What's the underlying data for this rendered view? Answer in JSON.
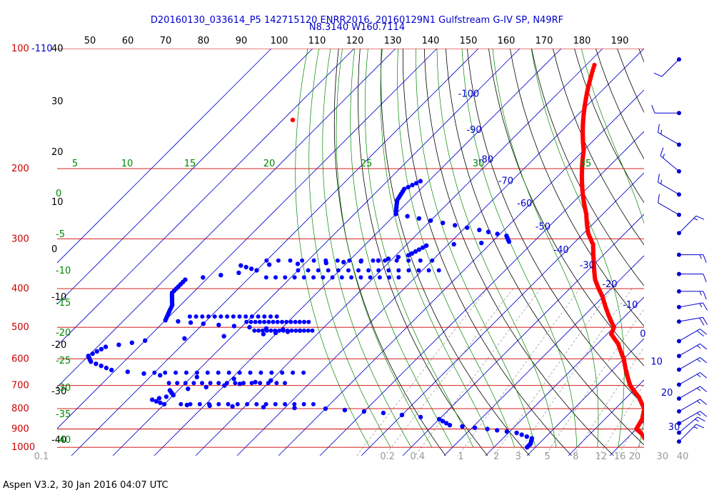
{
  "header": {
    "line1": "D20160130_033614_P5 142715120 ENRR2016, 20160129N1 Gulfstream G-IV SP, N49RF",
    "line2": "N8.3140 W160.7114"
  },
  "footer": "Aspen V3.2, 30 Jan 2016  04:07 UTC",
  "colors": {
    "isobar": "#cc0000",
    "isotherm": "#0000cc",
    "dry_adiabat": "#000000",
    "moist_adiabat": "#008800",
    "mixing_ratio": "#999999",
    "temperature": "#ff0000",
    "dewpoint": "#0000ff",
    "wind": "#0000cc"
  },
  "chart_data": {
    "type": "skew-t",
    "pressure_levels": [
      100,
      200,
      300,
      400,
      500,
      600,
      700,
      800,
      900,
      1000
    ],
    "pressure_labels": [
      "100",
      "200",
      "300",
      "400",
      "500",
      "600",
      "700",
      "800",
      "900",
      "1000"
    ],
    "top_axis_ticks": [
      "50",
      "60",
      "70",
      "80",
      "90",
      "100",
      "110",
      "120",
      "130",
      "140",
      "150",
      "160",
      "170",
      "180",
      "190"
    ],
    "left_extra_label": "-110",
    "dry_adiabat_labels": [
      "40",
      "30",
      "20",
      "10",
      "0",
      "-10",
      "-20",
      "-30",
      "-40"
    ],
    "moist_adiabat_labels": [
      "0",
      "-5",
      "-10",
      "-15",
      "-20",
      "-25",
      "-30",
      "-35",
      "-40"
    ],
    "moist_top_labels": [
      "5",
      "10",
      "15",
      "20",
      "25",
      "30",
      "35"
    ],
    "isotherm_labels": [
      {
        "t": -100,
        "p": 130
      },
      {
        "t": -90,
        "p": 160
      },
      {
        "t": -80,
        "p": 190
      },
      {
        "t": -70,
        "p": 215
      },
      {
        "t": -60,
        "p": 245
      },
      {
        "t": -50,
        "p": 280
      },
      {
        "t": -40,
        "p": 320
      },
      {
        "t": -30,
        "p": 350
      },
      {
        "t": -20,
        "p": 390
      },
      {
        "t": -10,
        "p": 440
      },
      {
        "t": 0,
        "p": 520
      },
      {
        "t": 10,
        "p": 610
      },
      {
        "t": 20,
        "p": 730
      },
      {
        "t": 30,
        "p": 890
      }
    ],
    "mixing_ratio_labels": [
      "0.1",
      "0.2",
      "0.4",
      "1",
      "2",
      "3",
      "5",
      "8",
      "12",
      "16",
      "20",
      "30",
      "40"
    ],
    "temperature": [
      {
        "p": 110,
        "t": -78
      },
      {
        "p": 180,
        "t": -60
      },
      {
        "p": 200,
        "t": -56
      },
      {
        "p": 230,
        "t": -50
      },
      {
        "p": 260,
        "t": -44
      },
      {
        "p": 290,
        "t": -39
      },
      {
        "p": 310,
        "t": -35
      },
      {
        "p": 340,
        "t": -31
      },
      {
        "p": 380,
        "t": -26
      },
      {
        "p": 420,
        "t": -20
      },
      {
        "p": 460,
        "t": -15
      },
      {
        "p": 500,
        "t": -10
      },
      {
        "p": 520,
        "t": -9
      },
      {
        "p": 550,
        "t": -5
      },
      {
        "p": 600,
        "t": 0
      },
      {
        "p": 650,
        "t": 4
      },
      {
        "p": 700,
        "t": 8
      },
      {
        "p": 750,
        "t": 13
      },
      {
        "p": 800,
        "t": 17
      },
      {
        "p": 850,
        "t": 19
      },
      {
        "p": 900,
        "t": 20
      },
      {
        "p": 920,
        "t": 22
      },
      {
        "p": 960,
        "t": 25
      },
      {
        "p": 1000,
        "t": 27
      }
    ],
    "dewpoint": [
      {
        "p": 215,
        "t": -92
      },
      {
        "p": 225,
        "t": -94
      },
      {
        "p": 240,
        "t": -93
      },
      {
        "p": 260,
        "t": -90
      },
      {
        "p": 270,
        "t": -80
      },
      {
        "p": 285,
        "t": -66
      },
      {
        "p": 295,
        "t": -58
      },
      {
        "p": 305,
        "t": -56
      },
      {
        "p": 312,
        "t": -75
      },
      {
        "p": 330,
        "t": -77
      },
      {
        "p": 340,
        "t": -83
      },
      {
        "p": 345,
        "t": -95
      },
      {
        "p": 350,
        "t": -115
      },
      {
        "p": 360,
        "t": -110
      },
      {
        "p": 380,
        "t": -125
      },
      {
        "p": 410,
        "t": -125
      },
      {
        "p": 440,
        "t": -122
      },
      {
        "p": 480,
        "t": -120
      },
      {
        "p": 490,
        "t": -110
      },
      {
        "p": 500,
        "t": -98
      },
      {
        "p": 510,
        "t": -85
      },
      {
        "p": 520,
        "t": -93
      },
      {
        "p": 540,
        "t": -120
      },
      {
        "p": 560,
        "t": -128
      },
      {
        "p": 590,
        "t": -130
      },
      {
        "p": 610,
        "t": -128
      },
      {
        "p": 640,
        "t": -121
      },
      {
        "p": 660,
        "t": -108
      },
      {
        "p": 680,
        "t": -80
      },
      {
        "p": 700,
        "t": -90
      },
      {
        "p": 720,
        "t": -102
      },
      {
        "p": 740,
        "t": -100
      },
      {
        "p": 760,
        "t": -104
      },
      {
        "p": 780,
        "t": -100
      },
      {
        "p": 790,
        "t": -83
      },
      {
        "p": 800,
        "t": -60
      },
      {
        "p": 820,
        "t": -45
      },
      {
        "p": 850,
        "t": -30
      },
      {
        "p": 880,
        "t": -26
      },
      {
        "p": 900,
        "t": -16
      },
      {
        "p": 920,
        "t": -8
      },
      {
        "p": 950,
        "t": -3
      },
      {
        "p": 980,
        "t": -2
      },
      {
        "p": 1000,
        "t": -2
      }
    ],
    "dewpoint_scatter_groups": [
      {
        "p": 340,
        "t_from": -110,
        "t_to": -70
      },
      {
        "p": 360,
        "t_from": -100,
        "t_to": -66
      },
      {
        "p": 375,
        "t_from": -106,
        "t_to": -74
      },
      {
        "p": 470,
        "t_from": -115,
        "t_to": -94
      },
      {
        "p": 485,
        "t_from": -100,
        "t_to": -85
      },
      {
        "p": 510,
        "t_from": -96,
        "t_to": -82
      },
      {
        "p": 650,
        "t_from": -110,
        "t_to": -74
      },
      {
        "p": 690,
        "t_from": -104,
        "t_to": -76
      },
      {
        "p": 780,
        "t_from": -96,
        "t_to": -64
      }
    ],
    "wind_barbs": [
      {
        "p": 110,
        "dir": 225,
        "spd": 10
      },
      {
        "p": 150,
        "dir": 270,
        "spd": 10
      },
      {
        "p": 180,
        "dir": 300,
        "spd": 15
      },
      {
        "p": 210,
        "dir": 310,
        "spd": 15
      },
      {
        "p": 240,
        "dir": 300,
        "spd": 15
      },
      {
        "p": 270,
        "dir": 300,
        "spd": 10
      },
      {
        "p": 300,
        "dir": 45,
        "spd": 15
      },
      {
        "p": 340,
        "dir": 90,
        "spd": 15
      },
      {
        "p": 380,
        "dir": 90,
        "spd": 10
      },
      {
        "p": 420,
        "dir": 90,
        "spd": 15
      },
      {
        "p": 460,
        "dir": 80,
        "spd": 15
      },
      {
        "p": 500,
        "dir": 80,
        "spd": 20
      },
      {
        "p": 560,
        "dir": 60,
        "spd": 20
      },
      {
        "p": 610,
        "dir": 60,
        "spd": 15
      },
      {
        "p": 660,
        "dir": 60,
        "spd": 15
      },
      {
        "p": 720,
        "dir": 60,
        "spd": 15
      },
      {
        "p": 780,
        "dir": 60,
        "spd": 15
      },
      {
        "p": 840,
        "dir": 60,
        "spd": 15
      },
      {
        "p": 900,
        "dir": 60,
        "spd": 15
      },
      {
        "p": 950,
        "dir": 50,
        "spd": 15
      },
      {
        "p": 1000,
        "dir": 45,
        "spd": 15
      }
    ]
  }
}
